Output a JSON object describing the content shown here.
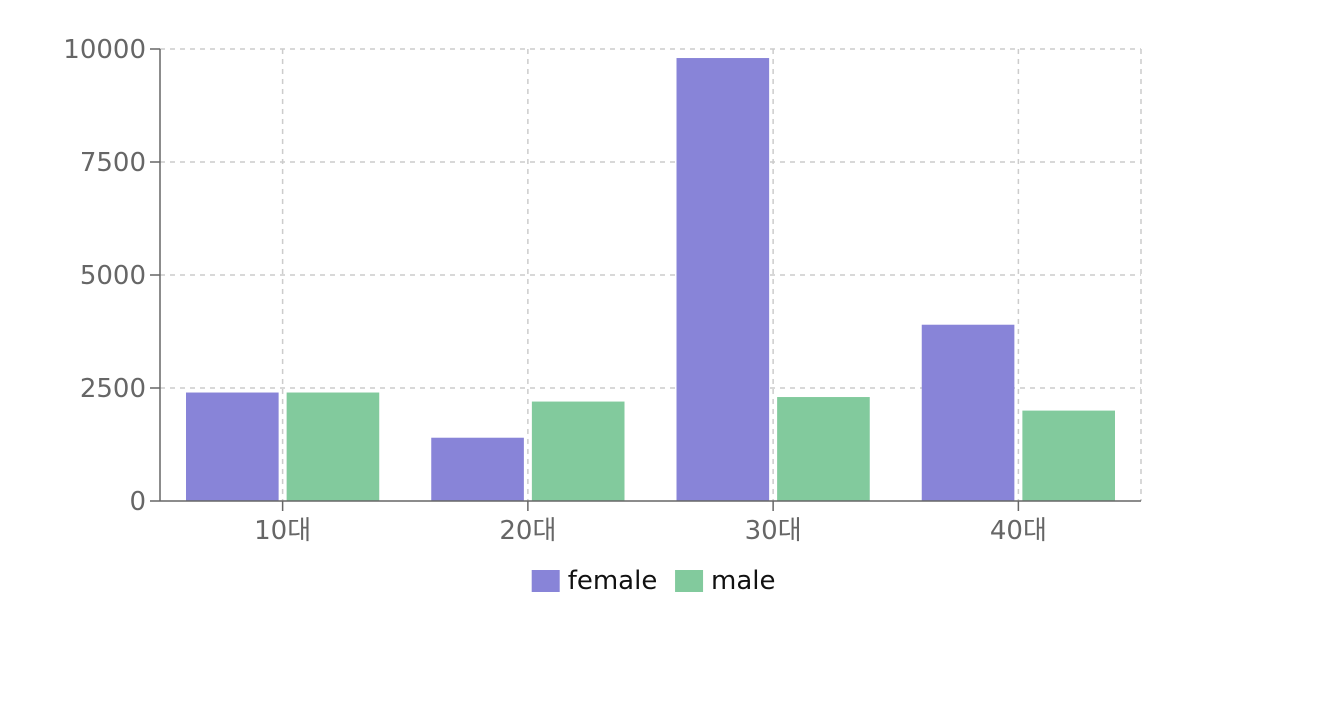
{
  "chart_data": {
    "type": "bar",
    "categories": [
      "10대",
      "20대",
      "30대",
      "40대"
    ],
    "series": [
      {
        "name": "female",
        "values": [
          2400,
          1400,
          9800,
          3900
        ],
        "color": "#8884d8"
      },
      {
        "name": "male",
        "values": [
          2400,
          2200,
          2300,
          2000
        ],
        "color": "#82ca9d"
      }
    ],
    "ylim": [
      0,
      10000
    ],
    "yticks": [
      0,
      2500,
      5000,
      7500,
      10000
    ],
    "grid": true,
    "grid_style": "dashed",
    "legend_position": "bottom"
  }
}
